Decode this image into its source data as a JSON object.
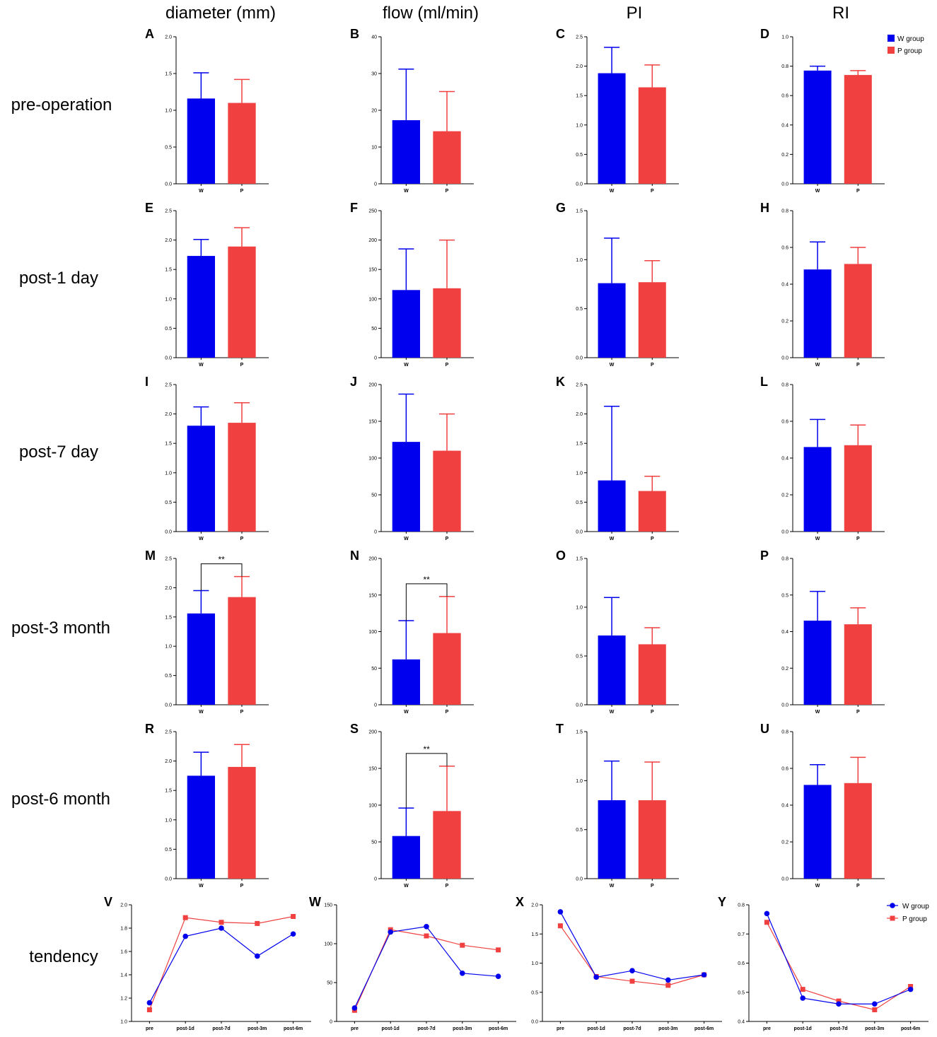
{
  "colors": {
    "w": "#0000ee",
    "p": "#f04040",
    "axis": "#000000"
  },
  "legend": {
    "w_label": "W group",
    "p_label": "P group"
  },
  "column_titles": [
    "diameter (mm)",
    "flow (ml/min)",
    "PI",
    "RI"
  ],
  "row_titles": [
    "pre-operation",
    "post-1 day",
    "post-7 day",
    "post-3 month",
    "post-6 month",
    "tendency"
  ],
  "chart_data": [
    {
      "id": "A",
      "type": "bar",
      "categories": [
        "W",
        "P"
      ],
      "values": [
        1.16,
        1.1
      ],
      "errors": [
        1.51,
        1.42
      ],
      "ylim": [
        0,
        2.0
      ],
      "yticks": [
        "0.0",
        "0.5",
        "1.0",
        "1.5",
        "2.0"
      ]
    },
    {
      "id": "B",
      "type": "bar",
      "categories": [
        "W",
        "P"
      ],
      "values": [
        17.3,
        14.3
      ],
      "errors": [
        31.2,
        25.1
      ],
      "ylim": [
        0,
        40
      ],
      "yticks": [
        "0",
        "10",
        "20",
        "30",
        "40"
      ]
    },
    {
      "id": "C",
      "type": "bar",
      "categories": [
        "W",
        "P"
      ],
      "values": [
        1.88,
        1.64
      ],
      "errors": [
        2.32,
        2.02
      ],
      "ylim": [
        0,
        2.5
      ],
      "yticks": [
        "0.0",
        "0.5",
        "1.0",
        "1.5",
        "2.0",
        "2.5"
      ]
    },
    {
      "id": "D",
      "type": "bar",
      "categories": [
        "W",
        "P"
      ],
      "values": [
        0.77,
        0.74
      ],
      "errors": [
        0.8,
        0.77
      ],
      "ylim": [
        0,
        1.0
      ],
      "yticks": [
        "0.0",
        "0.2",
        "0.4",
        "0.6",
        "0.8",
        "1.0"
      ]
    },
    {
      "id": "E",
      "type": "bar",
      "categories": [
        "W",
        "P"
      ],
      "values": [
        1.73,
        1.89
      ],
      "errors": [
        2.01,
        2.21
      ],
      "ylim": [
        0,
        2.5
      ],
      "yticks": [
        "0.0",
        "0.5",
        "1.0",
        "1.5",
        "2.0",
        "2.5"
      ]
    },
    {
      "id": "F",
      "type": "bar",
      "categories": [
        "W",
        "P"
      ],
      "values": [
        115,
        118
      ],
      "errors": [
        185,
        200
      ],
      "ylim": [
        0,
        250
      ],
      "yticks": [
        "0",
        "50",
        "100",
        "150",
        "200",
        "250"
      ]
    },
    {
      "id": "G",
      "type": "bar",
      "categories": [
        "W",
        "P"
      ],
      "values": [
        0.76,
        0.77
      ],
      "errors": [
        1.22,
        0.99
      ],
      "ylim": [
        0,
        1.5
      ],
      "yticks": [
        "0.0",
        "0.5",
        "1.0",
        "1.5"
      ]
    },
    {
      "id": "H",
      "type": "bar",
      "categories": [
        "W",
        "P"
      ],
      "values": [
        0.48,
        0.51
      ],
      "errors": [
        0.63,
        0.6
      ],
      "ylim": [
        0,
        0.8
      ],
      "yticks": [
        "0.0",
        "0.2",
        "0.4",
        "0.6",
        "0.8"
      ]
    },
    {
      "id": "I",
      "type": "bar",
      "categories": [
        "W",
        "P"
      ],
      "values": [
        1.8,
        1.85
      ],
      "errors": [
        2.12,
        2.19
      ],
      "ylim": [
        0,
        2.5
      ],
      "yticks": [
        "0.0",
        "0.5",
        "1.0",
        "1.5",
        "2.0",
        "2.5"
      ]
    },
    {
      "id": "J",
      "type": "bar",
      "categories": [
        "W",
        "P"
      ],
      "values": [
        122,
        110
      ],
      "errors": [
        187,
        160
      ],
      "ylim": [
        0,
        200
      ],
      "yticks": [
        "0",
        "50",
        "100",
        "150",
        "200"
      ]
    },
    {
      "id": "K",
      "type": "bar",
      "categories": [
        "W",
        "P"
      ],
      "values": [
        0.87,
        0.69
      ],
      "errors": [
        2.13,
        0.94
      ],
      "ylim": [
        0,
        2.5
      ],
      "yticks": [
        "0.0",
        "0.5",
        "1.0",
        "1.5",
        "2.0",
        "2.5"
      ]
    },
    {
      "id": "L",
      "type": "bar",
      "categories": [
        "W",
        "P"
      ],
      "values": [
        0.46,
        0.47
      ],
      "errors": [
        0.61,
        0.58
      ],
      "ylim": [
        0,
        0.8
      ],
      "yticks": [
        "0.0",
        "0.2",
        "0.4",
        "0.6",
        "0.8"
      ]
    },
    {
      "id": "M",
      "type": "bar",
      "categories": [
        "W",
        "P"
      ],
      "values": [
        1.56,
        1.84
      ],
      "errors": [
        1.95,
        2.19
      ],
      "ylim": [
        0,
        2.5
      ],
      "yticks": [
        "0.0",
        "0.5",
        "1.0",
        "1.5",
        "2.0",
        "2.5"
      ],
      "significance": "**"
    },
    {
      "id": "N",
      "type": "bar",
      "categories": [
        "W",
        "P"
      ],
      "values": [
        62,
        98
      ],
      "errors": [
        115,
        148
      ],
      "ylim": [
        0,
        200
      ],
      "yticks": [
        "0",
        "50",
        "100",
        "150",
        "200"
      ],
      "significance": "**"
    },
    {
      "id": "O",
      "type": "bar",
      "categories": [
        "W",
        "P"
      ],
      "values": [
        0.71,
        0.62
      ],
      "errors": [
        1.1,
        0.79
      ],
      "ylim": [
        0,
        1.5
      ],
      "yticks": [
        "0.0",
        "0.5",
        "1.0",
        "1.5"
      ]
    },
    {
      "id": "P",
      "type": "bar",
      "categories": [
        "W",
        "P"
      ],
      "values": [
        0.46,
        0.44
      ],
      "errors": [
        0.62,
        0.53
      ],
      "ylim": [
        0,
        0.8
      ],
      "yticks": [
        "0.0",
        "0.2",
        "0.4",
        "0.5",
        "0.8"
      ]
    },
    {
      "id": "R",
      "type": "bar",
      "categories": [
        "W",
        "P"
      ],
      "values": [
        1.75,
        1.9
      ],
      "errors": [
        2.15,
        2.28
      ],
      "ylim": [
        0,
        2.5
      ],
      "yticks": [
        "0.0",
        "0.5",
        "1.0",
        "1.5",
        "2.0",
        "2.5"
      ]
    },
    {
      "id": "S",
      "type": "bar",
      "categories": [
        "W",
        "P"
      ],
      "values": [
        58,
        92
      ],
      "errors": [
        96,
        153
      ],
      "ylim": [
        0,
        200
      ],
      "yticks": [
        "0",
        "50",
        "100",
        "150",
        "200"
      ],
      "significance": "**"
    },
    {
      "id": "T",
      "type": "bar",
      "categories": [
        "W",
        "P"
      ],
      "values": [
        0.8,
        0.8
      ],
      "errors": [
        1.2,
        1.19
      ],
      "ylim": [
        0,
        1.5
      ],
      "yticks": [
        "0.0",
        "0.5",
        "1.0",
        "1.5"
      ]
    },
    {
      "id": "U",
      "type": "bar",
      "categories": [
        "W",
        "P"
      ],
      "values": [
        0.51,
        0.52
      ],
      "errors": [
        0.62,
        0.66
      ],
      "ylim": [
        0,
        0.8
      ],
      "yticks": [
        "0.0",
        "0.2",
        "0.4",
        "0.6",
        "0.8"
      ]
    },
    {
      "id": "V",
      "type": "line",
      "x": [
        "pre",
        "post-1d",
        "post-7d",
        "post-3m",
        "post-6m"
      ],
      "ylim": [
        1.0,
        2.0
      ],
      "yticks": [
        "1.0",
        "1.2",
        "1.4",
        "1.6",
        "1.8",
        "2.0"
      ],
      "series": [
        {
          "name": "W group",
          "values": [
            1.16,
            1.73,
            1.8,
            1.56,
            1.75
          ]
        },
        {
          "name": "P group",
          "values": [
            1.1,
            1.89,
            1.85,
            1.84,
            1.9
          ]
        }
      ]
    },
    {
      "id": "W",
      "type": "line",
      "x": [
        "pre",
        "post-1d",
        "post-7d",
        "post-3m",
        "post-6m"
      ],
      "ylim": [
        0,
        150
      ],
      "yticks": [
        "0",
        "50",
        "100",
        "150"
      ],
      "series": [
        {
          "name": "W group",
          "values": [
            17.3,
            115,
            122,
            62,
            58
          ]
        },
        {
          "name": "P group",
          "values": [
            14.3,
            118,
            110,
            98,
            92
          ]
        }
      ]
    },
    {
      "id": "X",
      "type": "line",
      "x": [
        "pre",
        "post-1d",
        "post-7d",
        "post-3m",
        "post-6m"
      ],
      "ylim": [
        0,
        2.0
      ],
      "yticks": [
        "0.0",
        "0.5",
        "1.0",
        "1.5",
        "2.0"
      ],
      "series": [
        {
          "name": "W group",
          "values": [
            1.88,
            0.76,
            0.87,
            0.71,
            0.8
          ]
        },
        {
          "name": "P group",
          "values": [
            1.64,
            0.77,
            0.69,
            0.62,
            0.8
          ]
        }
      ]
    },
    {
      "id": "Y",
      "type": "line",
      "x": [
        "pre",
        "post-1d",
        "post-7d",
        "post-3m",
        "post-6m"
      ],
      "ylim": [
        0.4,
        0.8
      ],
      "yticks": [
        "0.4",
        "0.5",
        "0.6",
        "0.7",
        "0.8"
      ],
      "series": [
        {
          "name": "W group",
          "values": [
            0.77,
            0.48,
            0.46,
            0.46,
            0.51
          ]
        },
        {
          "name": "P group",
          "values": [
            0.74,
            0.51,
            0.47,
            0.44,
            0.52
          ]
        }
      ]
    }
  ]
}
